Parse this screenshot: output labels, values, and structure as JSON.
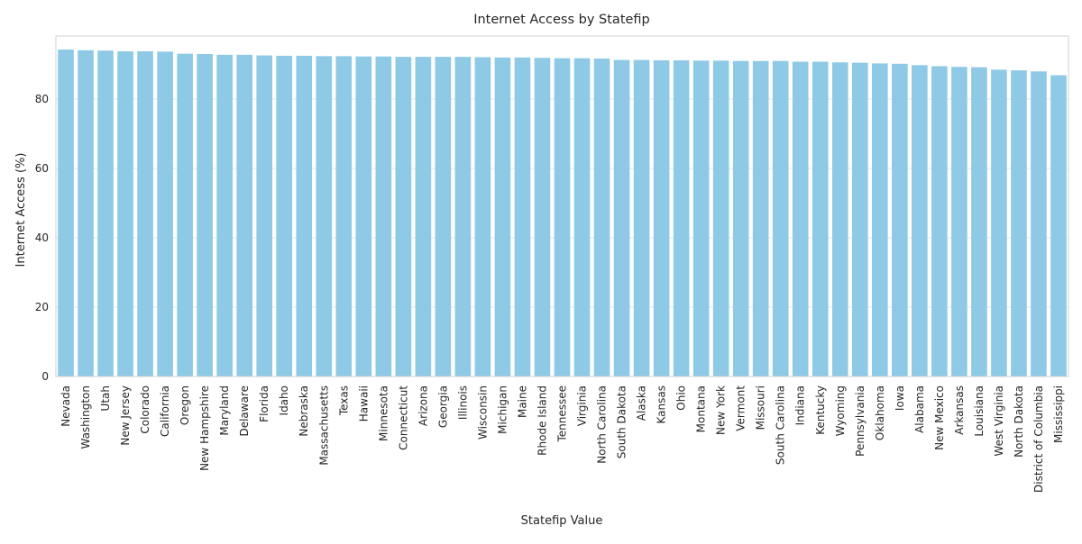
{
  "chart_data": {
    "type": "bar",
    "title": "Internet Access by Statefip",
    "xlabel": "Statefip Value",
    "ylabel": "Internet Access (%)",
    "ylim": [
      0,
      98.2
    ],
    "yticks": [
      "0",
      "20",
      "40",
      "60",
      "80"
    ],
    "grid": "horizontal",
    "bar_color": "#8ecae6",
    "categories": [
      "Nevada",
      "Washington",
      "Utah",
      "New Jersey",
      "Colorado",
      "California",
      "Oregon",
      "New Hampshire",
      "Maryland",
      "Delaware",
      "Florida",
      "Idaho",
      "Nebraska",
      "Massachusetts",
      "Texas",
      "Hawaii",
      "Minnesota",
      "Connecticut",
      "Arizona",
      "Georgia",
      "Illinois",
      "Wisconsin",
      "Michigan",
      "Maine",
      "Rhode Island",
      "Tennessee",
      "Virginia",
      "North Carolina",
      "South Dakota",
      "Alaska",
      "Kansas",
      "Ohio",
      "Montana",
      "New York",
      "Vermont",
      "Missouri",
      "South Carolina",
      "Indiana",
      "Kentucky",
      "Wyoming",
      "Pennsylvania",
      "Oklahoma",
      "Iowa",
      "Alabama",
      "New Mexico",
      "Arkansas",
      "Louisiana",
      "West Virginia",
      "North Dakota",
      "District of Columbia",
      "Mississippi"
    ],
    "values": [
      94.3,
      94.1,
      94.0,
      93.8,
      93.8,
      93.7,
      93.1,
      93.0,
      92.8,
      92.8,
      92.6,
      92.5,
      92.5,
      92.4,
      92.4,
      92.3,
      92.3,
      92.2,
      92.2,
      92.2,
      92.2,
      92.1,
      92.0,
      92.0,
      91.9,
      91.8,
      91.8,
      91.7,
      91.3,
      91.3,
      91.2,
      91.2,
      91.1,
      91.1,
      91.0,
      91.0,
      91.0,
      90.8,
      90.8,
      90.6,
      90.5,
      90.3,
      90.2,
      89.8,
      89.5,
      89.3,
      89.2,
      88.5,
      88.3,
      88.0,
      86.9
    ]
  }
}
